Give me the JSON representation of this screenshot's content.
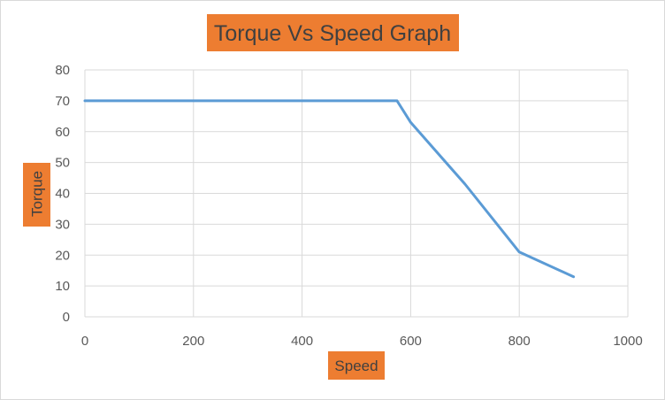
{
  "chart_data": {
    "type": "line",
    "title": "Torque Vs Speed Graph",
    "xlabel": "Speed",
    "ylabel": "Torque",
    "xlim": [
      0,
      1000
    ],
    "ylim": [
      0,
      80
    ],
    "x_ticks": [
      "0",
      "200",
      "400",
      "600",
      "800",
      "1000"
    ],
    "y_ticks": [
      "0",
      "10",
      "20",
      "30",
      "40",
      "50",
      "60",
      "70",
      "80"
    ],
    "grid": true,
    "legend": "none",
    "series": [
      {
        "x": [
          0,
          575,
          600,
          700,
          800,
          900
        ],
        "y": [
          70,
          70,
          63,
          43,
          21,
          13
        ],
        "color": "#5b9bd5"
      }
    ],
    "label_fill_color": "#ed7d31",
    "grid_color": "#d9d9d9"
  }
}
